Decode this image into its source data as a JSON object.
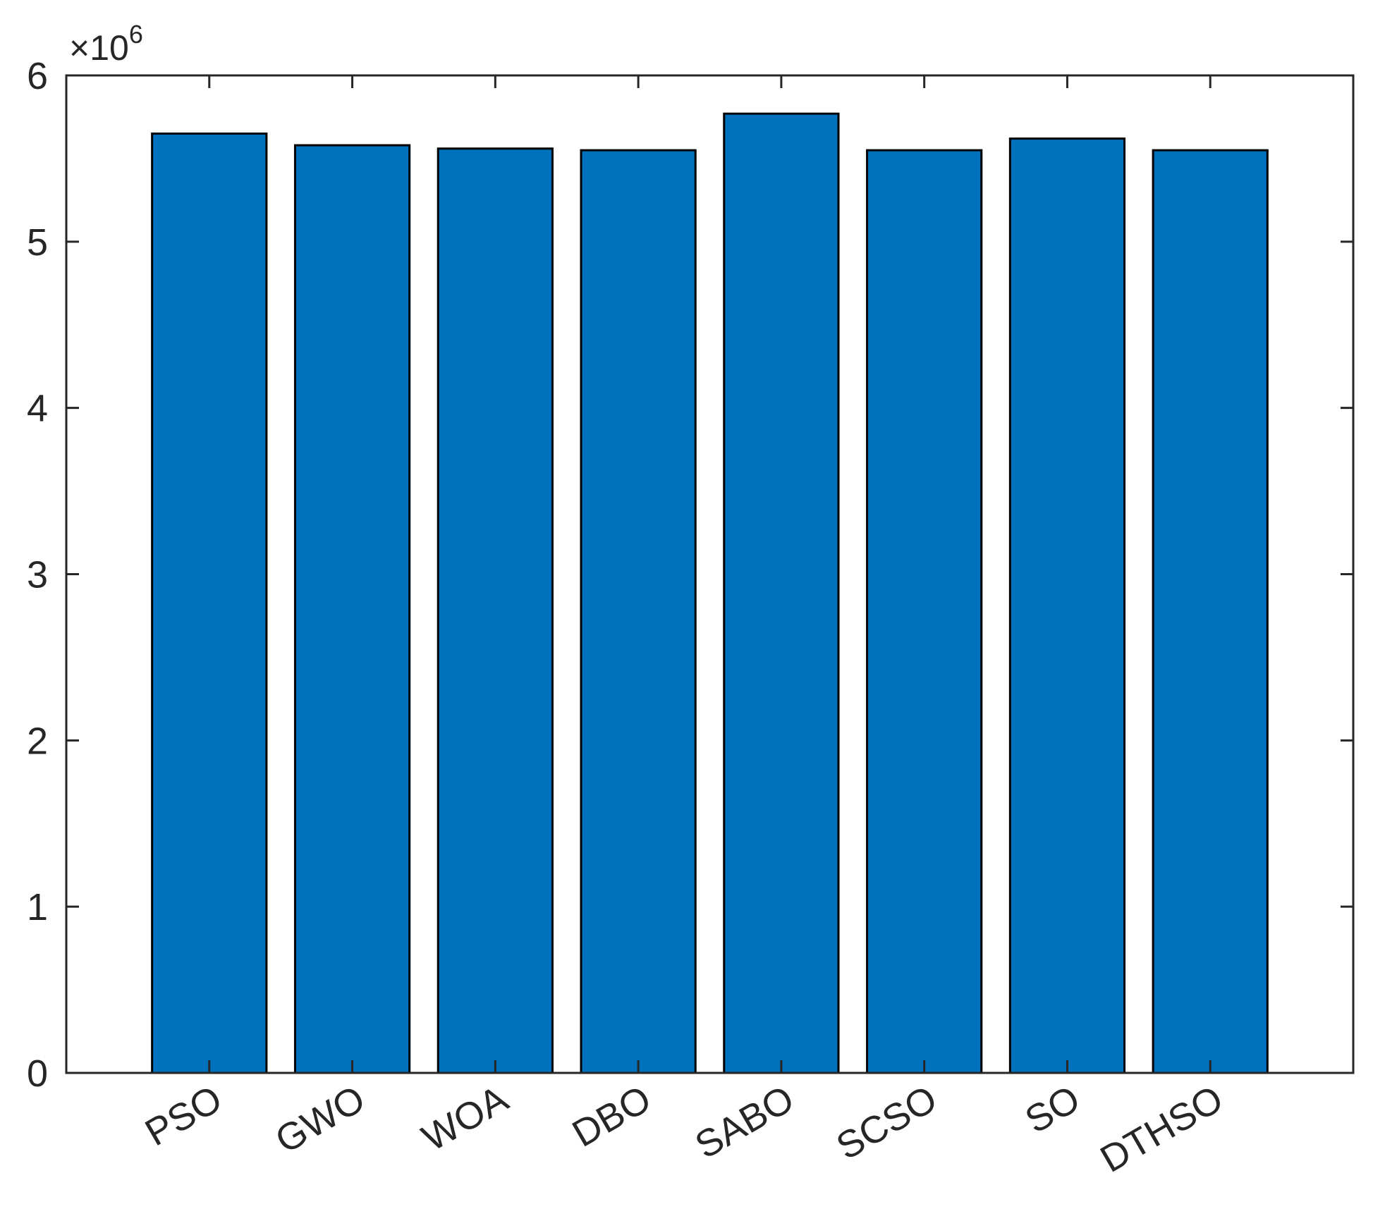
{
  "chart_data": {
    "type": "bar",
    "title": "",
    "xlabel": "",
    "ylabel": "",
    "categories": [
      "PSO",
      "GWO",
      "WOA",
      "DBO",
      "SABO",
      "SCSO",
      "SO",
      "DTHSO"
    ],
    "values": [
      5650000,
      5580000,
      5560000,
      5550000,
      5770000,
      5550000,
      5620000,
      5550000
    ],
    "ylim": [
      0,
      6000000
    ],
    "yticks": [
      0,
      1000000,
      2000000,
      3000000,
      4000000,
      5000000,
      6000000
    ],
    "ytick_labels": [
      "0",
      "1",
      "2",
      "3",
      "4",
      "5",
      "6"
    ],
    "y_multiplier_base": "×10",
    "y_multiplier_exponent": "6",
    "bar_color": "#0072bd",
    "edge_color": "#000000",
    "grid": false,
    "box": true,
    "xtick_rotation": "angled"
  }
}
